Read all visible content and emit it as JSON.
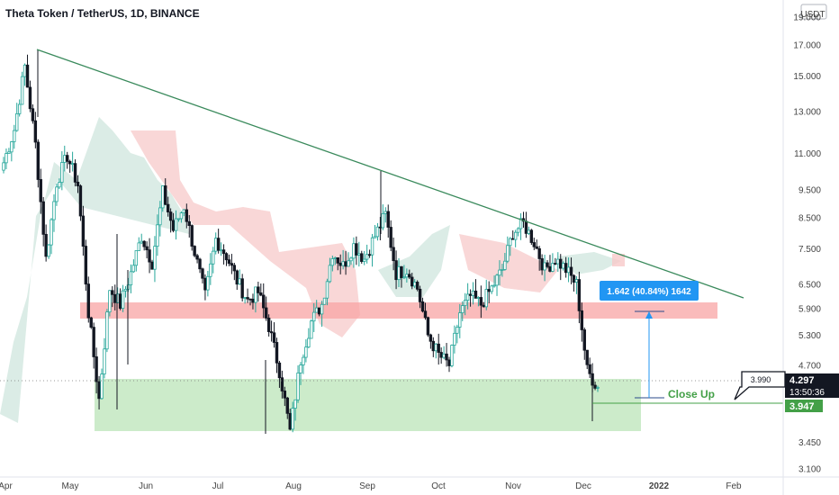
{
  "chart_data": {
    "type": "candlestick",
    "title": "Theta Token / TetherUS, 1D, BINANCE",
    "y_scale": "log",
    "ylim": [
      3.0,
      19.5
    ],
    "y_ticks": [
      "19.000",
      "17.000",
      "15.000",
      "13.000",
      "11.000",
      "9.500",
      "8.500",
      "7.500",
      "6.500",
      "5.900",
      "5.300",
      "4.700",
      "3.450",
      "3.100"
    ],
    "y_unit": "USDT",
    "x_ticks": [
      "Apr",
      "May",
      "Jun",
      "Jul",
      "Aug",
      "Sep",
      "Oct",
      "Nov",
      "Dec",
      "2022",
      "Feb"
    ],
    "current_price": "4.297",
    "countdown": "13:50:36",
    "support_price_tag": "3.947",
    "line_price_label": "3.990",
    "measure_label": "1.642 (40.84%) 1642",
    "annotation": "Close Up",
    "colors": {
      "up": "#26a69a",
      "down": "#131722",
      "trendline": "#3a8a5c",
      "resistance_zone": "#f8a4a4",
      "support_zone": "#b6e2b3",
      "measure": "#2196f3",
      "close_up": "#43a047",
      "cloud_bull": "#cfe6dd",
      "cloud_bear": "#f7c9c9"
    },
    "candles_close": [
      10.6,
      12.1,
      15.6,
      11.4,
      7.2,
      9.8,
      10.9,
      9.7,
      5.8,
      4.1,
      6.4,
      6.0,
      6.8,
      7.9,
      7.1,
      9.4,
      8.1,
      8.9,
      7.4,
      6.2,
      7.8,
      7.3,
      6.6,
      6.1,
      6.3,
      5.5,
      4.6,
      3.6,
      4.8,
      5.6,
      6.0,
      7.4,
      7.0,
      7.6,
      7.2,
      7.9,
      8.6,
      6.8,
      6.9,
      6.4,
      5.3,
      4.9,
      4.7,
      5.8,
      6.2,
      6.0,
      6.4,
      6.9,
      8.0,
      8.3,
      7.7,
      6.9,
      7.2,
      6.9,
      6.5,
      4.6,
      4.3
    ]
  },
  "header": {
    "title": "Theta Token / TetherUS, 1D, BINANCE"
  },
  "axis": {
    "unit": "USDT"
  }
}
